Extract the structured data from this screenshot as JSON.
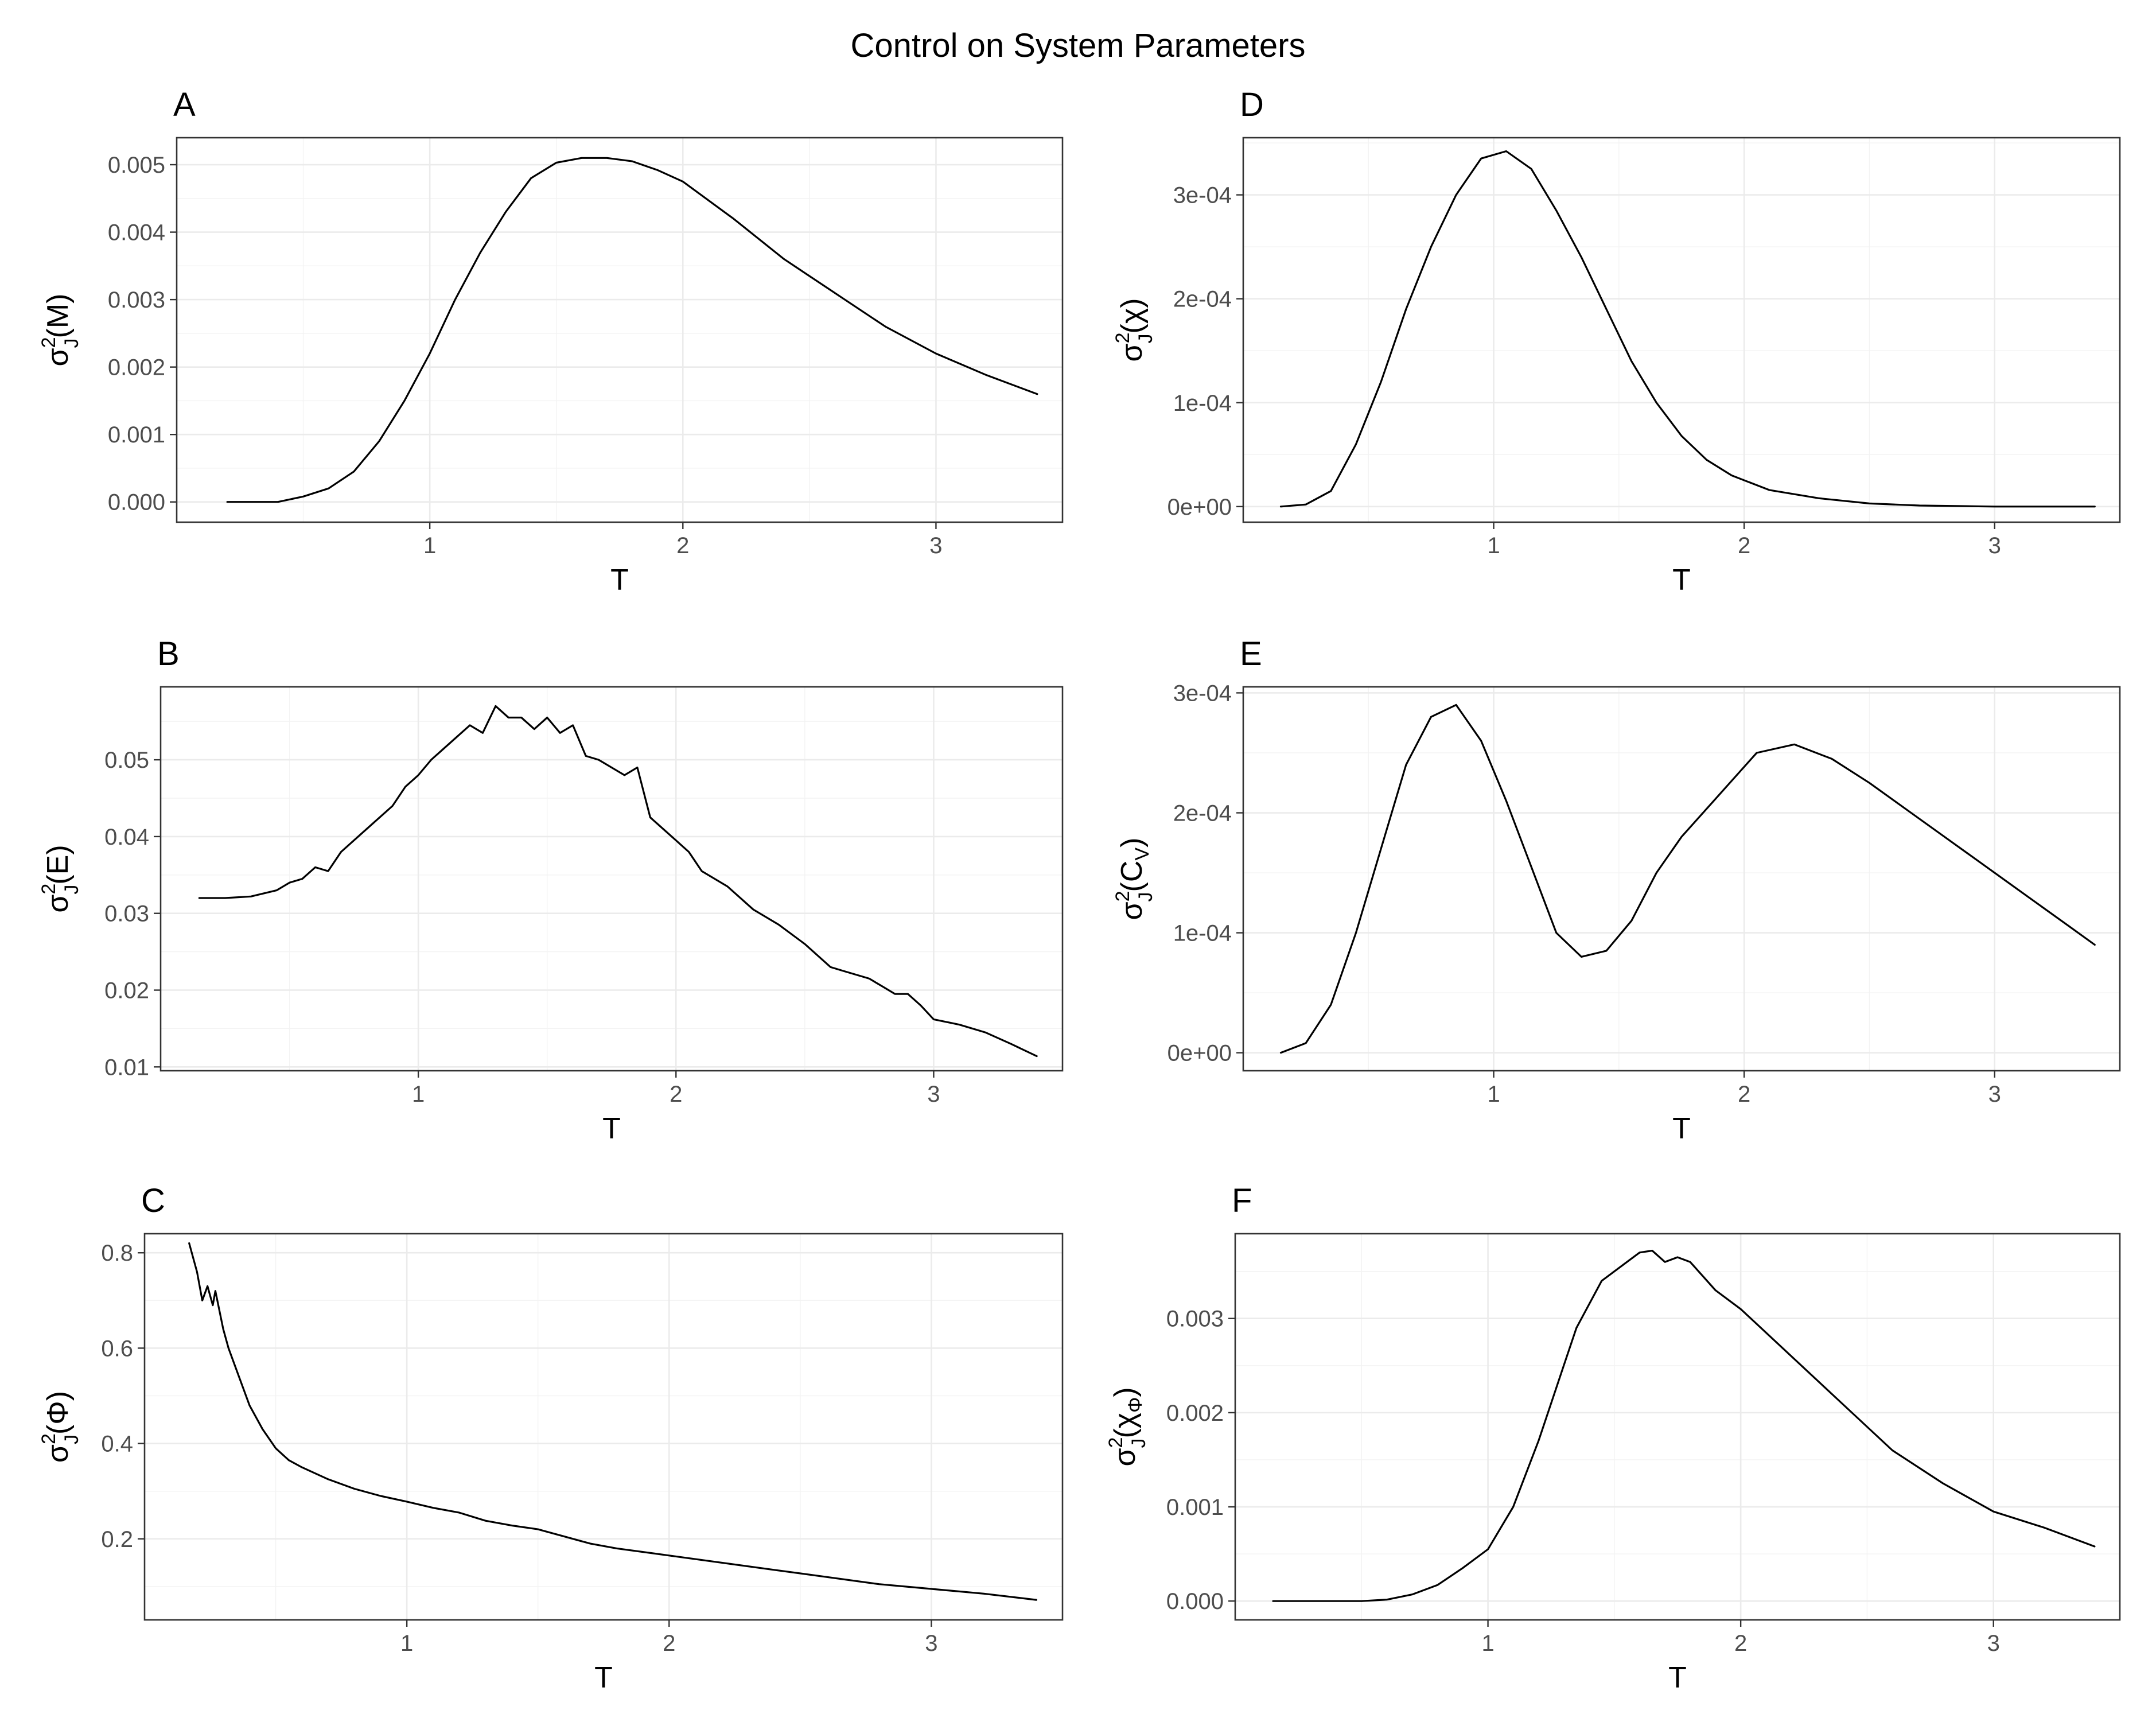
{
  "title": "Control on System Parameters",
  "chart_data": [
    {
      "panel": "A",
      "type": "line",
      "xlabel": "T",
      "ylabel": {
        "base": "σ",
        "sup": "2",
        "sub": "J",
        "arg": "(M)"
      },
      "xlim": [
        0.0,
        3.5
      ],
      "ylim": [
        -0.0003,
        0.0054
      ],
      "xticks": [
        1,
        2,
        3
      ],
      "xtick_labels": [
        "1",
        "2",
        "3"
      ],
      "yticks": [
        0.0,
        0.001,
        0.002,
        0.003,
        0.004,
        0.005
      ],
      "ytick_labels": [
        "0.000",
        "0.001",
        "0.002",
        "0.003",
        "0.004",
        "0.005"
      ],
      "grid": true,
      "series": [
        {
          "x": [
            0.2,
            0.3,
            0.4,
            0.5,
            0.6,
            0.7,
            0.8,
            0.9,
            1.0,
            1.1,
            1.2,
            1.3,
            1.4,
            1.5,
            1.6,
            1.7,
            1.8,
            1.9,
            2.0,
            2.2,
            2.4,
            2.6,
            2.8,
            3.0,
            3.2,
            3.4
          ],
          "y": [
            0.0,
            0.0,
            0.0,
            8e-05,
            0.0002,
            0.00045,
            0.0009,
            0.0015,
            0.0022,
            0.003,
            0.0037,
            0.0043,
            0.0048,
            0.00503,
            0.0051,
            0.0051,
            0.00505,
            0.00492,
            0.00475,
            0.0042,
            0.0036,
            0.0031,
            0.0026,
            0.0022,
            0.00188,
            0.0016
          ]
        }
      ]
    },
    {
      "panel": "B",
      "type": "line",
      "xlabel": "T",
      "ylabel": {
        "base": "σ",
        "sup": "2",
        "sub": "J",
        "arg": "(E)"
      },
      "xlim": [
        0.0,
        3.5
      ],
      "ylim": [
        0.0095,
        0.0595
      ],
      "xticks": [
        1,
        2,
        3
      ],
      "xtick_labels": [
        "1",
        "2",
        "3"
      ],
      "yticks": [
        0.01,
        0.02,
        0.03,
        0.04,
        0.05
      ],
      "ytick_labels": [
        "0.01",
        "0.02",
        "0.03",
        "0.04",
        "0.05"
      ],
      "grid": true,
      "series": [
        {
          "x": [
            0.15,
            0.25,
            0.35,
            0.45,
            0.5,
            0.55,
            0.6,
            0.65,
            0.7,
            0.8,
            0.9,
            0.95,
            1.0,
            1.05,
            1.1,
            1.15,
            1.2,
            1.25,
            1.3,
            1.35,
            1.4,
            1.45,
            1.5,
            1.55,
            1.6,
            1.65,
            1.7,
            1.8,
            1.85,
            1.9,
            1.95,
            2.0,
            2.05,
            2.1,
            2.2,
            2.3,
            2.35,
            2.4,
            2.5,
            2.6,
            2.65,
            2.75,
            2.8,
            2.85,
            2.9,
            2.95,
            3.0,
            3.1,
            3.2,
            3.3,
            3.4
          ],
          "y": [
            0.032,
            0.032,
            0.0322,
            0.033,
            0.034,
            0.0345,
            0.036,
            0.0355,
            0.038,
            0.041,
            0.044,
            0.0465,
            0.048,
            0.05,
            0.0515,
            0.053,
            0.0545,
            0.0535,
            0.057,
            0.0555,
            0.0555,
            0.054,
            0.0555,
            0.0535,
            0.0545,
            0.0505,
            0.05,
            0.048,
            0.049,
            0.0425,
            0.041,
            0.0395,
            0.038,
            0.0355,
            0.0335,
            0.0305,
            0.0295,
            0.0285,
            0.026,
            0.023,
            0.0225,
            0.0215,
            0.0205,
            0.0195,
            0.0195,
            0.018,
            0.0162,
            0.0155,
            0.0145,
            0.013,
            0.0114
          ]
        }
      ]
    },
    {
      "panel": "C",
      "type": "line",
      "xlabel": "T",
      "ylabel": {
        "base": "σ",
        "sup": "2",
        "sub": "J",
        "arg": "(Φ)"
      },
      "xlim": [
        0.0,
        3.5
      ],
      "ylim": [
        0.03,
        0.84
      ],
      "xticks": [
        1,
        2,
        3
      ],
      "xtick_labels": [
        "1",
        "2",
        "3"
      ],
      "yticks": [
        0.2,
        0.4,
        0.6,
        0.8
      ],
      "ytick_labels": [
        "0.2",
        "0.4",
        "0.6",
        "0.8"
      ],
      "grid": true,
      "series": [
        {
          "x": [
            0.17,
            0.2,
            0.22,
            0.24,
            0.26,
            0.27,
            0.3,
            0.32,
            0.36,
            0.4,
            0.45,
            0.5,
            0.55,
            0.6,
            0.7,
            0.8,
            0.9,
            1.0,
            1.1,
            1.2,
            1.3,
            1.4,
            1.5,
            1.6,
            1.7,
            1.8,
            2.0,
            2.2,
            2.4,
            2.6,
            2.8,
            3.0,
            3.2,
            3.4
          ],
          "y": [
            0.82,
            0.76,
            0.7,
            0.73,
            0.69,
            0.72,
            0.64,
            0.6,
            0.54,
            0.48,
            0.43,
            0.39,
            0.365,
            0.35,
            0.325,
            0.305,
            0.29,
            0.278,
            0.265,
            0.255,
            0.238,
            0.228,
            0.22,
            0.205,
            0.19,
            0.18,
            0.165,
            0.15,
            0.135,
            0.12,
            0.105,
            0.095,
            0.085,
            0.072
          ]
        }
      ]
    },
    {
      "panel": "D",
      "type": "line",
      "xlabel": "T",
      "ylabel": {
        "base": "σ",
        "sup": "2",
        "sub": "J",
        "arg": "(χ)"
      },
      "xlim": [
        0.0,
        3.5
      ],
      "ylim": [
        -1.5e-05,
        0.000355
      ],
      "xticks": [
        1,
        2,
        3
      ],
      "xtick_labels": [
        "1",
        "2",
        "3"
      ],
      "yticks": [
        0,
        0.0001,
        0.0002,
        0.0003
      ],
      "ytick_labels": [
        "0e+00",
        "1e-04",
        "2e-04",
        "3e-04"
      ],
      "grid": true,
      "series": [
        {
          "x": [
            0.15,
            0.25,
            0.35,
            0.45,
            0.55,
            0.65,
            0.75,
            0.85,
            0.95,
            1.05,
            1.15,
            1.25,
            1.35,
            1.45,
            1.55,
            1.65,
            1.75,
            1.85,
            1.95,
            2.1,
            2.3,
            2.5,
            2.7,
            3.0,
            3.4
          ],
          "y": [
            0.0,
            2e-06,
            1.5e-05,
            6e-05,
            0.00012,
            0.00019,
            0.00025,
            0.0003,
            0.000335,
            0.000342,
            0.000325,
            0.000285,
            0.00024,
            0.00019,
            0.00014,
            0.0001,
            6.8e-05,
            4.5e-05,
            3e-05,
            1.6e-05,
            8e-06,
            3e-06,
            1e-06,
            0.0,
            0.0
          ]
        }
      ]
    },
    {
      "panel": "E",
      "type": "line",
      "xlabel": "T",
      "ylabel": {
        "base": "σ",
        "sup": "2",
        "sub": "J",
        "arg": "(C",
        "argsub": "V",
        "argclose": ")"
      },
      "xlim": [
        0.0,
        3.5
      ],
      "ylim": [
        -1.5e-05,
        0.000305
      ],
      "xticks": [
        1,
        2,
        3
      ],
      "xtick_labels": [
        "1",
        "2",
        "3"
      ],
      "yticks": [
        0,
        0.0001,
        0.0002,
        0.0003
      ],
      "ytick_labels": [
        "0e+00",
        "1e-04",
        "2e-04",
        "3e-04"
      ],
      "grid": true,
      "series": [
        {
          "x": [
            0.15,
            0.25,
            0.35,
            0.45,
            0.55,
            0.65,
            0.75,
            0.85,
            0.95,
            1.05,
            1.15,
            1.25,
            1.35,
            1.45,
            1.55,
            1.65,
            1.75,
            1.9,
            2.05,
            2.2,
            2.35,
            2.5,
            2.7,
            2.9,
            3.1,
            3.3,
            3.4
          ],
          "y": [
            0.0,
            8e-06,
            4e-05,
            0.0001,
            0.00017,
            0.00024,
            0.00028,
            0.00029,
            0.00026,
            0.00021,
            0.000155,
            0.0001,
            8e-05,
            8.5e-05,
            0.00011,
            0.00015,
            0.00018,
            0.000215,
            0.00025,
            0.000257,
            0.000245,
            0.000225,
            0.000195,
            0.000165,
            0.000135,
            0.000105,
            9e-05
          ]
        }
      ]
    },
    {
      "panel": "F",
      "type": "line",
      "xlabel": "T",
      "ylabel": {
        "base": "σ",
        "sup": "2",
        "sub": "J",
        "arg": "(χ",
        "argsub": "Φ",
        "argclose": ")"
      },
      "xlim": [
        0.0,
        3.5
      ],
      "ylim": [
        -0.0002,
        0.0039
      ],
      "xticks": [
        1,
        2,
        3
      ],
      "xtick_labels": [
        "1",
        "2",
        "3"
      ],
      "yticks": [
        0.0,
        0.001,
        0.002,
        0.003
      ],
      "ytick_labels": [
        "0.000",
        "0.001",
        "0.002",
        "0.003"
      ],
      "grid": true,
      "series": [
        {
          "x": [
            0.15,
            0.3,
            0.5,
            0.6,
            0.7,
            0.8,
            0.9,
            1.0,
            1.1,
            1.2,
            1.3,
            1.35,
            1.45,
            1.55,
            1.6,
            1.65,
            1.7,
            1.75,
            1.8,
            1.9,
            2.0,
            2.2,
            2.4,
            2.6,
            2.8,
            3.0,
            3.2,
            3.4
          ],
          "y": [
            0.0,
            0.0,
            0.0,
            1.5e-05,
            7e-05,
            0.00017,
            0.00035,
            0.00055,
            0.001,
            0.0017,
            0.0025,
            0.0029,
            0.0034,
            0.0036,
            0.0037,
            0.00372,
            0.0036,
            0.00365,
            0.0036,
            0.0033,
            0.0031,
            0.0026,
            0.0021,
            0.0016,
            0.00125,
            0.00095,
            0.00078,
            0.00058
          ]
        }
      ]
    }
  ]
}
